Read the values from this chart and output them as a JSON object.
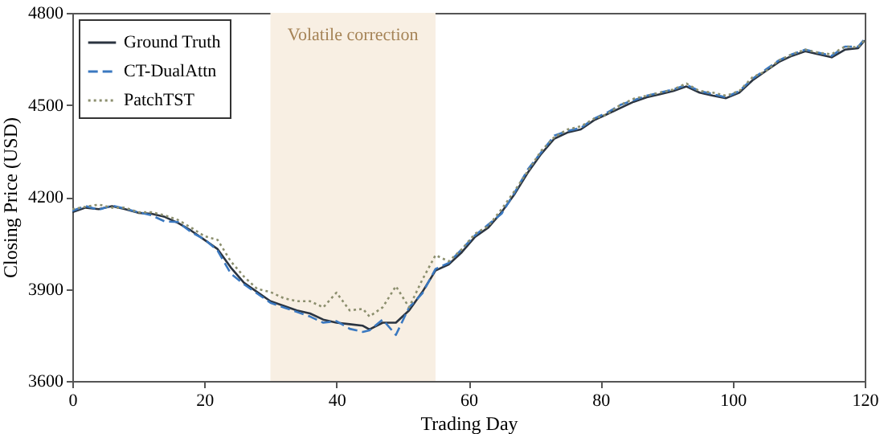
{
  "chart_data": {
    "type": "line",
    "xlabel": "Trading Day",
    "ylabel": "Closing Price (USD)",
    "x": [
      0,
      2,
      4,
      6,
      8,
      10,
      12,
      14,
      16,
      18,
      20,
      22,
      24,
      26,
      28,
      30,
      32,
      34,
      36,
      38,
      40,
      42,
      44,
      45,
      47,
      49,
      51,
      53,
      55,
      57,
      59,
      61,
      63,
      65,
      67,
      69,
      71,
      73,
      75,
      77,
      79,
      81,
      83,
      85,
      87,
      89,
      91,
      93,
      95,
      97,
      99,
      101,
      103,
      105,
      107,
      109,
      111,
      113,
      115,
      117,
      119,
      120
    ],
    "series": [
      {
        "name": "Ground Truth",
        "color": "#2b3440",
        "line_style": "solid",
        "values": [
          4150,
          4165,
          4160,
          4170,
          4160,
          4148,
          4145,
          4135,
          4115,
          4090,
          4060,
          4030,
          3970,
          3920,
          3890,
          3860,
          3845,
          3830,
          3820,
          3800,
          3790,
          3785,
          3780,
          3768,
          3790,
          3790,
          3830,
          3890,
          3960,
          3980,
          4020,
          4070,
          4100,
          4150,
          4210,
          4280,
          4340,
          4390,
          4410,
          4420,
          4450,
          4470,
          4490,
          4510,
          4525,
          4535,
          4545,
          4560,
          4540,
          4530,
          4522,
          4540,
          4580,
          4610,
          4640,
          4660,
          4675,
          4665,
          4655,
          4680,
          4685,
          4710
        ]
      },
      {
        "name": "CT-DualAttn",
        "color": "#3a78c0",
        "line_style": "dashed",
        "values": [
          4155,
          4170,
          4158,
          4172,
          4162,
          4150,
          4140,
          4120,
          4118,
          4085,
          4062,
          4025,
          3950,
          3915,
          3885,
          3855,
          3840,
          3825,
          3810,
          3790,
          3795,
          3770,
          3760,
          3765,
          3800,
          3750,
          3840,
          3885,
          3965,
          3985,
          4030,
          4075,
          4110,
          4145,
          4215,
          4290,
          4345,
          4400,
          4415,
          4425,
          4455,
          4475,
          4500,
          4515,
          4530,
          4540,
          4550,
          4565,
          4545,
          4535,
          4525,
          4545,
          4585,
          4615,
          4645,
          4665,
          4680,
          4670,
          4660,
          4690,
          4690,
          4715
        ]
      },
      {
        "name": "PatchTST",
        "color": "#8c8f6e",
        "line_style": "dotted",
        "values": [
          4160,
          4168,
          4175,
          4165,
          4165,
          4150,
          4150,
          4140,
          4125,
          4100,
          4072,
          4060,
          3990,
          3940,
          3900,
          3890,
          3870,
          3860,
          3860,
          3840,
          3888,
          3830,
          3835,
          3810,
          3840,
          3909,
          3840,
          3930,
          4010,
          3990,
          4030,
          4080,
          4105,
          4160,
          4220,
          4285,
          4350,
          4395,
          4420,
          4430,
          4455,
          4470,
          4500,
          4520,
          4530,
          4540,
          4550,
          4570,
          4545,
          4540,
          4530,
          4545,
          4590,
          4610,
          4645,
          4665,
          4680,
          4670,
          4665,
          4690,
          4688,
          4712
        ]
      }
    ],
    "xlim": [
      0,
      120
    ],
    "xticks": [
      0,
      20,
      40,
      60,
      80,
      100,
      120
    ],
    "ylim": [
      3600,
      4800
    ],
    "yticks": [
      3600,
      3900,
      4200,
      4500,
      4800
    ],
    "bands": [
      {
        "axis": "x",
        "from": 30,
        "to": 55,
        "label": "Volatile correction",
        "color": "#f8efe3"
      }
    ],
    "legend": "top left",
    "grid": false,
    "marker": "none"
  }
}
